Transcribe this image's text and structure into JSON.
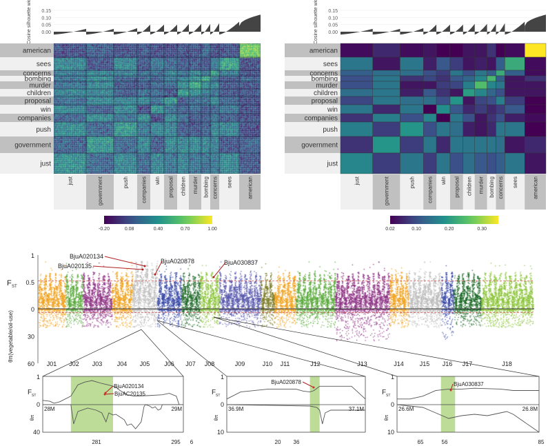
{
  "chart_data": [
    {
      "type": "heatmap",
      "panel": "top-left",
      "silhouette_axis": {
        "label": "Cosine silhouette width",
        "ticks": [
          "0.15",
          "0.10",
          "0.05",
          "0.00"
        ],
        "ylim": [
          -0.02,
          0.15
        ]
      },
      "clusters": [
        "just",
        "government",
        "push",
        "companies",
        "win",
        "proposal",
        "children",
        "murder",
        "bombing",
        "concerns",
        "sees",
        "american"
      ],
      "silhouette_max": [
        0.02,
        0.02,
        0.025,
        0.05,
        0.05,
        0.05,
        0.055,
        0.055,
        0.055,
        0.06,
        0.07,
        0.12
      ],
      "colorbar": {
        "ticks": [
          "-0.20",
          "0.08",
          "0.40",
          "0.70",
          "1.00"
        ],
        "range": [
          -0.2,
          1.0
        ],
        "palette": [
          "#2b1a46",
          "#2d3a84",
          "#2aa55a",
          "#7fcc3a",
          "#f2e21e"
        ]
      }
    },
    {
      "type": "heatmap",
      "panel": "top-right",
      "silhouette_axis": {
        "label": "Cosine silhouette width",
        "ticks": [
          "0.15",
          "0.10",
          "0.05",
          "0.00"
        ],
        "ylim": [
          -0.02,
          0.15
        ]
      },
      "rows": [
        "american",
        "sees",
        "concerns",
        "bombing",
        "murder",
        "children",
        "proposal",
        "win",
        "companies",
        "push",
        "government",
        "just"
      ],
      "columns": [
        "just",
        "government",
        "push",
        "companies",
        "win",
        "proposal",
        "children",
        "murder",
        "bombing",
        "concerns",
        "sees",
        "american"
      ],
      "values": [
        [
          0.03,
          0.06,
          0.03,
          0.04,
          0.02,
          0.02,
          0.04,
          0.04,
          0.07,
          0.02,
          0.03,
          0.35
        ],
        [
          0.15,
          0.04,
          0.15,
          0.05,
          0.11,
          0.08,
          0.04,
          0.05,
          0.04,
          0.12,
          0.22,
          0.03
        ],
        [
          0.12,
          0.14,
          0.14,
          0.1,
          0.08,
          0.15,
          0.1,
          0.15,
          0.12,
          0.22,
          0.12,
          0.03
        ],
        [
          0.1,
          0.15,
          0.07,
          0.09,
          0.07,
          0.11,
          0.13,
          0.17,
          0.24,
          0.12,
          0.04,
          0.07
        ],
        [
          0.1,
          0.15,
          0.04,
          0.04,
          0.08,
          0.09,
          0.16,
          0.25,
          0.17,
          0.15,
          0.04,
          0.04
        ],
        [
          0.14,
          0.15,
          0.05,
          0.11,
          0.07,
          0.04,
          0.2,
          0.17,
          0.13,
          0.1,
          0.04,
          0.04
        ],
        [
          0.09,
          0.15,
          0.14,
          0.14,
          0.1,
          0.19,
          0.04,
          0.09,
          0.1,
          0.16,
          0.08,
          0.02
        ],
        [
          0.15,
          0.06,
          0.15,
          0.02,
          0.18,
          0.11,
          0.06,
          0.08,
          0.06,
          0.08,
          0.11,
          0.02
        ],
        [
          0.07,
          0.16,
          0.1,
          0.17,
          0.02,
          0.15,
          0.1,
          0.04,
          0.07,
          0.1,
          0.05,
          0.03
        ],
        [
          0.16,
          0.08,
          0.19,
          0.1,
          0.15,
          0.14,
          0.05,
          0.04,
          0.06,
          0.15,
          0.15,
          0.02
        ],
        [
          0.07,
          0.19,
          0.08,
          0.15,
          0.06,
          0.15,
          0.15,
          0.15,
          0.15,
          0.14,
          0.04,
          0.06
        ],
        [
          0.17,
          0.08,
          0.15,
          0.08,
          0.15,
          0.1,
          0.14,
          0.11,
          0.1,
          0.12,
          0.15,
          0.04
        ]
      ],
      "colorbar": {
        "ticks": [
          "0.02",
          "0.10",
          "0.20",
          "0.30"
        ],
        "range": [
          0.02,
          0.35
        ]
      }
    },
    {
      "type": "scatter",
      "panel": "manhattan",
      "ylabel_top": "F",
      "ylabel_top_sub": "ST",
      "ylabel_bottom": "θπ(vegetable/oil-use)",
      "yticks_top": [
        "1",
        "0.5",
        "0"
      ],
      "yticks_bottom": [
        "30",
        "60"
      ],
      "ylim_top": [
        0,
        1
      ],
      "ylim_bottom": [
        0,
        60
      ],
      "threshold_fst": 0.52,
      "threshold_pi": 4,
      "chromosomes": [
        "J01",
        "J02",
        "J03",
        "J04",
        "J05",
        "J06",
        "J07",
        "J08",
        "J09",
        "J10",
        "J11",
        "J12",
        "J13",
        "J14",
        "J15",
        "J16",
        "J17",
        "J18"
      ],
      "colors": [
        "#f0a21e",
        "#5aaa3c",
        "#8e3585",
        "#f0a21e",
        "#bdbdbd",
        "#3a4aa6",
        "#1f6b2a",
        "#8cc43c",
        "#5a5aae",
        "#7d7d2a",
        "#f0a21e",
        "#5aaa3c",
        "#8e3585",
        "#f0a21e",
        "#bdbdbd",
        "#3a4aa6",
        "#1f6b2a",
        "#8cc43c"
      ],
      "annotations": [
        {
          "label": "BjuA020134",
          "chromosome": "J05"
        },
        {
          "label": "BjuA020135",
          "chromosome": "J05"
        },
        {
          "label": "BjuA020878",
          "chromosome": "J05"
        },
        {
          "label": "BjuA030837",
          "chromosome": "J08"
        }
      ]
    },
    {
      "type": "line",
      "panel": "zoom-1",
      "ylabel_top": "F",
      "ylabel_top_sub": "ST",
      "ylabel_bottom": "θπ",
      "yticks_top": [
        "1",
        "0"
      ],
      "ytick_bottom": "40",
      "x_start_label": "28M",
      "x_end_label": "29M",
      "xlim": [
        28.0,
        29.0
      ],
      "pi_max": 40,
      "highlight": [
        28.2,
        28.5
      ],
      "genes": [
        "BjuA020134",
        "BjuAC20135"
      ],
      "bottom_labels": [
        "281",
        "295",
        "6"
      ],
      "fst": [
        [
          28.0,
          0.15
        ],
        [
          28.05,
          0.12
        ],
        [
          28.08,
          0.05
        ],
        [
          28.12,
          0.1
        ],
        [
          28.2,
          0.3
        ],
        [
          28.25,
          0.7
        ],
        [
          28.3,
          0.8
        ],
        [
          28.35,
          0.85
        ],
        [
          28.42,
          0.75
        ],
        [
          28.48,
          0.68
        ],
        [
          28.52,
          0.62
        ],
        [
          28.55,
          0.5
        ],
        [
          28.6,
          0.35
        ],
        [
          28.65,
          0.3
        ],
        [
          28.75,
          0.32
        ],
        [
          28.85,
          0.35
        ],
        [
          28.9,
          0.4
        ],
        [
          28.95,
          0.3
        ],
        [
          28.97,
          0.0
        ]
      ],
      "pi": [
        [
          28.0,
          0
        ],
        [
          28.2,
          0
        ],
        [
          28.22,
          28
        ],
        [
          28.25,
          10
        ],
        [
          28.32,
          5
        ],
        [
          28.38,
          8
        ],
        [
          28.42,
          12
        ],
        [
          28.45,
          25
        ],
        [
          28.47,
          12
        ],
        [
          28.5,
          15
        ],
        [
          28.52,
          14
        ],
        [
          28.55,
          18
        ],
        [
          28.58,
          22
        ],
        [
          28.6,
          30
        ],
        [
          28.63,
          28
        ],
        [
          28.66,
          35
        ],
        [
          28.7,
          25
        ],
        [
          28.72,
          3
        ],
        [
          28.73,
          0
        ],
        [
          28.76,
          2
        ],
        [
          28.78,
          5
        ],
        [
          28.8,
          3
        ],
        [
          28.82,
          8
        ],
        [
          28.84,
          6
        ],
        [
          28.85,
          0
        ],
        [
          29.0,
          0
        ]
      ]
    },
    {
      "type": "line",
      "panel": "zoom-2",
      "ylabel_top": "F",
      "ylabel_top_sub": "ST",
      "ylabel_bottom": "θπ",
      "yticks_top": [
        "1",
        "0"
      ],
      "ytick_bottom": "10",
      "x_start_label": "36.9M",
      "x_end_label": "37.1M",
      "xlim": [
        36.9,
        37.1
      ],
      "pi_max": 10,
      "highlight": [
        37.02,
        37.034
      ],
      "genes": [
        "BjuA020878"
      ],
      "bottom_labels": [
        "20",
        "36"
      ],
      "fst": [
        [
          36.9,
          0.2
        ],
        [
          36.92,
          0.45
        ],
        [
          36.96,
          0.55
        ],
        [
          37.0,
          0.55
        ],
        [
          37.01,
          0.48
        ],
        [
          37.02,
          0.45
        ],
        [
          37.026,
          0.5
        ],
        [
          37.034,
          0.65
        ],
        [
          37.08,
          0.65
        ],
        [
          37.1,
          0.2
        ]
      ],
      "pi": [
        [
          36.9,
          0
        ],
        [
          37.02,
          0.5
        ],
        [
          37.03,
          1
        ],
        [
          37.034,
          2
        ],
        [
          37.038,
          7
        ],
        [
          37.042,
          3
        ],
        [
          37.05,
          2
        ],
        [
          37.1,
          2
        ]
      ]
    },
    {
      "type": "line",
      "panel": "zoom-3",
      "ylabel_top": "F",
      "ylabel_top_sub": "ST",
      "ylabel_bottom": "θπ",
      "yticks_top": [
        "1",
        "0"
      ],
      "ytick_bottom": "10",
      "x_start_label": "26.6M",
      "x_end_label": "26.8M",
      "xlim": [
        26.6,
        26.82
      ],
      "pi_max": 10,
      "highlight": [
        26.668,
        26.69
      ],
      "genes": [
        "BjuA030837"
      ],
      "bottom_labels": [
        "65",
        "56",
        "85"
      ],
      "fst": [
        [
          26.6,
          0.2
        ],
        [
          26.62,
          0.2
        ],
        [
          26.64,
          0.3
        ],
        [
          26.66,
          0.5
        ],
        [
          26.68,
          0.55
        ],
        [
          26.7,
          0.55
        ],
        [
          26.72,
          0.58
        ],
        [
          26.76,
          0.55
        ],
        [
          26.78,
          0.5
        ],
        [
          26.82,
          0.5
        ]
      ],
      "pi": [
        [
          26.6,
          0
        ],
        [
          26.64,
          1
        ],
        [
          26.66,
          3
        ],
        [
          26.67,
          4
        ],
        [
          26.68,
          5
        ],
        [
          26.7,
          4
        ],
        [
          26.72,
          3.5
        ],
        [
          26.74,
          4
        ],
        [
          26.76,
          3
        ],
        [
          26.77,
          2.5
        ],
        [
          26.78,
          3.5
        ],
        [
          26.82,
          10
        ]
      ]
    }
  ]
}
